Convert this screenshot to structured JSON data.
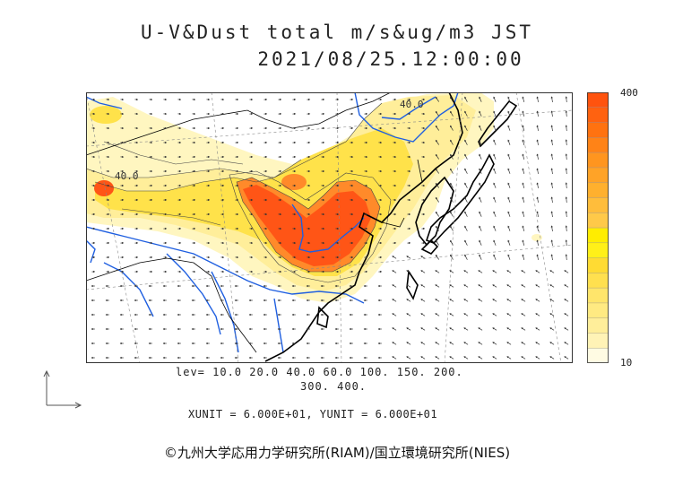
{
  "title": {
    "line1": "U-V&Dust total m/s&ug/m3 JST",
    "line2": "2021/08/25.12:00:00"
  },
  "colorbar": {
    "max_label": "400",
    "min_label": "10",
    "colors": [
      "#fffbe3",
      "#fff3b6",
      "#ffee9a",
      "#ffea82",
      "#ffe56b",
      "#ffe04f",
      "#ffdb33",
      "#fff019",
      "#ffed00",
      "#ffc949",
      "#ffbd3b",
      "#ffb02e",
      "#ffa327",
      "#ff951f",
      "#ff8317",
      "#ff7210",
      "#ff6210",
      "#ff530e"
    ]
  },
  "legend": {
    "levels_line1": "lev= 10.0 20.0 40.0 60.0 100. 150. 200.",
    "levels_line2": "300. 400."
  },
  "units_text": "XUNIT = 6.000E+01, YUNIT = 6.000E+01",
  "credit": "©九州大学応用力学研究所(RIAM)/国立環境研究所(NIES)",
  "map_labels": {
    "contour_label_west": "40.0",
    "contour_label_north": "40.0"
  },
  "colors": {
    "coast": "#000000",
    "river": "#1f5fe0",
    "low": "#fff6c0",
    "mid": "#ffe24a",
    "high": "#ff8a2a",
    "peak": "#ff5516",
    "vector": "#333333"
  }
}
